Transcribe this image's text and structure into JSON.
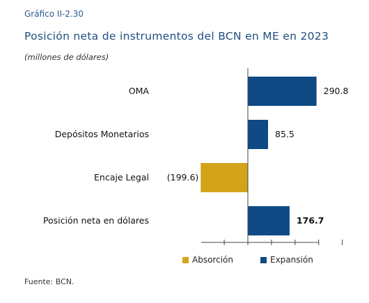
{
  "header": {
    "figure_number": "Gráfico II-2.30",
    "title": "Posición neta de instrumentos del BCN en ME en 2023",
    "subtitle": "(millones de dólares)"
  },
  "source": "Fuente: BCN.",
  "colors": {
    "expansion": "#0f4a84",
    "absorption": "#d4a418",
    "axis": "#444444"
  },
  "chart_data": {
    "type": "bar",
    "orientation": "horizontal",
    "xlim": [
      -200,
      300
    ],
    "categories": [
      "OMA",
      "Depósitos Monetarios",
      "Encaje Legal",
      "Posición neta en dólares"
    ],
    "values": [
      290.8,
      85.5,
      -199.6,
      176.7
    ],
    "value_labels": [
      "290.8",
      "85.5",
      "(199.6)",
      "176.7"
    ],
    "series_type": [
      "Expansión",
      "Expansión",
      "Absorción",
      "Expansión"
    ],
    "bold_labels": [
      false,
      false,
      false,
      true
    ],
    "legend": [
      {
        "name": "Absorción",
        "color": "#d4a418"
      },
      {
        "name": "Expansión",
        "color": "#0f4a84"
      }
    ],
    "legend_position": "bottom",
    "grid": false
  }
}
